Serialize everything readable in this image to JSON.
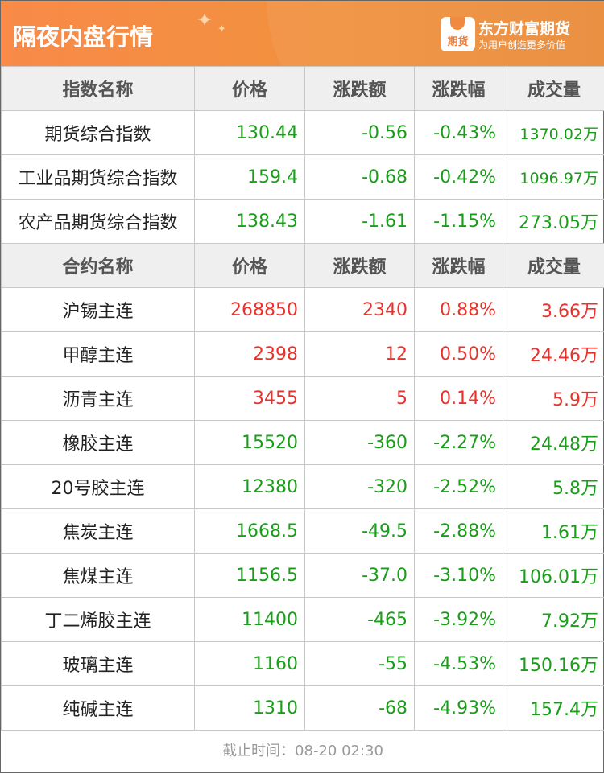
{
  "header": {
    "title": "隔夜内盘行情",
    "brand": "东方财富期货",
    "slogan": "为用户创造更多价值",
    "logo_text": "期货",
    "accent": "#f98a48"
  },
  "colors": {
    "up": "#e8322c",
    "down": "#1a9e1a"
  },
  "index_header": [
    "指数名称",
    "价格",
    "涨跌额",
    "涨跌幅",
    "成交量"
  ],
  "index_rows": [
    {
      "name": "期货综合指数",
      "price": "130.44",
      "change": "-0.56",
      "pct": "-0.43%",
      "volume": "1370.02万",
      "dir": "down"
    },
    {
      "name": "工业品期货综合指数",
      "price": "159.4",
      "change": "-0.68",
      "pct": "-0.42%",
      "volume": "1096.97万",
      "dir": "down"
    },
    {
      "name": "农产品期货综合指数",
      "price": "138.43",
      "change": "-1.61",
      "pct": "-1.15%",
      "volume": "273.05万",
      "dir": "down"
    }
  ],
  "contract_header": [
    "合约名称",
    "价格",
    "涨跌额",
    "涨跌幅",
    "成交量"
  ],
  "contract_rows": [
    {
      "name": "沪锡主连",
      "price": "268850",
      "change": "2340",
      "pct": "0.88%",
      "volume": "3.66万",
      "dir": "up"
    },
    {
      "name": "甲醇主连",
      "price": "2398",
      "change": "12",
      "pct": "0.50%",
      "volume": "24.46万",
      "dir": "up"
    },
    {
      "name": "沥青主连",
      "price": "3455",
      "change": "5",
      "pct": "0.14%",
      "volume": "5.9万",
      "dir": "up"
    },
    {
      "name": "橡胶主连",
      "price": "15520",
      "change": "-360",
      "pct": "-2.27%",
      "volume": "24.48万",
      "dir": "down"
    },
    {
      "name": "20号胶主连",
      "price": "12380",
      "change": "-320",
      "pct": "-2.52%",
      "volume": "5.8万",
      "dir": "down"
    },
    {
      "name": "焦炭主连",
      "price": "1668.5",
      "change": "-49.5",
      "pct": "-2.88%",
      "volume": "1.61万",
      "dir": "down"
    },
    {
      "name": "焦煤主连",
      "price": "1156.5",
      "change": "-37.0",
      "pct": "-3.10%",
      "volume": "106.01万",
      "dir": "down"
    },
    {
      "name": "丁二烯胶主连",
      "price": "11400",
      "change": "-465",
      "pct": "-3.92%",
      "volume": "7.92万",
      "dir": "down"
    },
    {
      "name": "玻璃主连",
      "price": "1160",
      "change": "-55",
      "pct": "-4.53%",
      "volume": "150.16万",
      "dir": "down"
    },
    {
      "name": "纯碱主连",
      "price": "1310",
      "change": "-68",
      "pct": "-4.93%",
      "volume": "157.4万",
      "dir": "down"
    }
  ],
  "footer": "截止时间：08-20 02:30"
}
